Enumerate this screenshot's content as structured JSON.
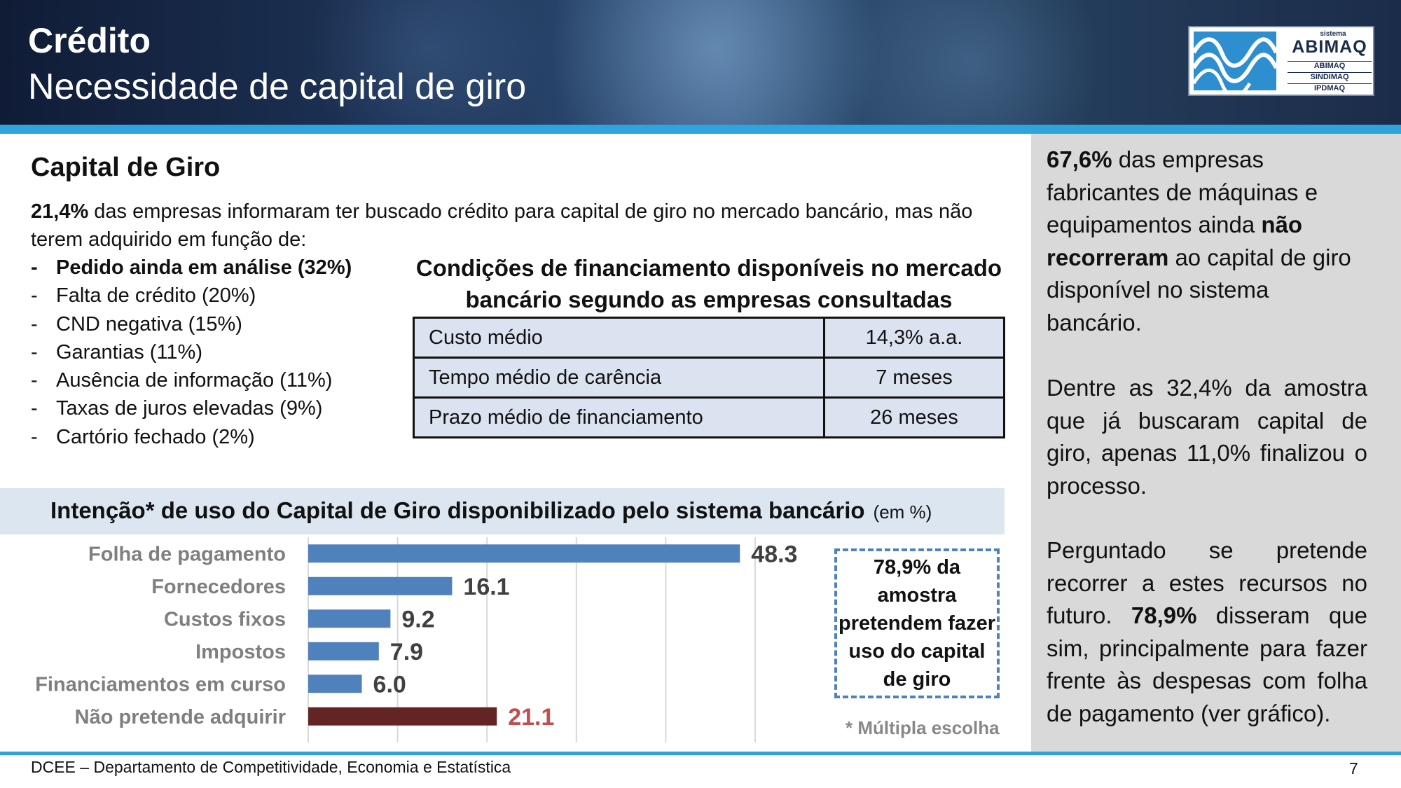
{
  "header": {
    "title": "Crédito",
    "subtitle": "Necessidade de capital de giro"
  },
  "logo": {
    "small_top": "sistema",
    "name": "ABIMAQ",
    "entities": [
      "ABIMAQ",
      "SINDIMAQ",
      "IPDMAQ"
    ]
  },
  "section": {
    "title": "Capital de Giro",
    "intro_bold": "21,4%",
    "intro_text": " das empresas informaram ter buscado crédito para capital de giro no mercado bancário, mas não terem adquirido em função de:",
    "reasons": [
      {
        "dash": "-",
        "text": "Pedido ainda em análise (32%)",
        "bold": true
      },
      {
        "dash": "-",
        "text": "Falta de crédito (20%)",
        "bold": false
      },
      {
        "dash": "-",
        "text": "CND negativa (15%)",
        "bold": false
      },
      {
        "dash": "-",
        "text": "Garantias (11%)",
        "bold": false
      },
      {
        "dash": "-",
        "text": "Ausência de informação (11%)",
        "bold": false
      },
      {
        "dash": "-",
        "text": "Taxas de juros elevadas (9%)",
        "bold": false
      },
      {
        "dash": "-",
        "text": "Cartório fechado (2%)",
        "bold": false
      }
    ]
  },
  "financing_table": {
    "title": "Condições de financiamento disponíveis no mercado bancário segundo as empresas consultadas",
    "rows": [
      {
        "label": "Custo médio",
        "value": "14,3% a.a."
      },
      {
        "label": "Tempo médio de carência",
        "value": "7 meses"
      },
      {
        "label": "Prazo médio de financiamento",
        "value": "26 meses"
      }
    ]
  },
  "chart_data": {
    "type": "bar",
    "orientation": "horizontal",
    "title": "Intenção* de uso do Capital de Giro disponibilizado pelo sistema bancário",
    "units": "(em %)",
    "categories": [
      "Folha de pagamento",
      "Fornecedores",
      "Custos fixos",
      "Impostos",
      "Financiamentos em curso",
      "Não pretende adquirir"
    ],
    "values": [
      48.3,
      16.1,
      9.2,
      7.9,
      6.0,
      21.1
    ],
    "value_labels": [
      "48.3",
      "16.1",
      "9.2",
      "7.9",
      "6.0",
      "21.1"
    ],
    "colors": [
      "#4f81bd",
      "#4f81bd",
      "#4f81bd",
      "#4f81bd",
      "#4f81bd",
      "#632523"
    ],
    "label_colors": [
      "#404040",
      "#404040",
      "#404040",
      "#404040",
      "#404040",
      "#c0504d"
    ],
    "xlim": [
      0,
      50
    ],
    "grid": true,
    "note": "* Múltipla escolha"
  },
  "callout": {
    "text": "78,9% da amostra pretendem fazer uso do capital de giro"
  },
  "side_panel": {
    "p1": [
      {
        "text": "67,6%",
        "bold": true
      },
      {
        "text": " das empresas fabricantes de máquinas e equipamentos ainda ",
        "bold": false
      },
      {
        "text": "não recorreram",
        "bold": true
      },
      {
        "text": " ao capital de giro disponível no sistema bancário.",
        "bold": false
      }
    ],
    "p2": [
      {
        "text": "Dentre as 32,4% da amostra que já buscaram capital de giro, apenas 11,0% finalizou o processo.",
        "bold": false
      }
    ],
    "p3": [
      {
        "text": "Perguntado se pretende recorrer a estes recursos no futuro. ",
        "bold": false
      },
      {
        "text": "78,9%",
        "bold": true
      },
      {
        "text": " disseram que sim, principalmente para fazer frente às despesas com folha de pagamento (ver gráfico).",
        "bold": false
      }
    ]
  },
  "footer": {
    "text": "DCEE – Departamento de Competitividade, Economia e Estatística",
    "page": "7"
  },
  "colors": {
    "accent_blue": "#2ea3dc",
    "bar_blue": "#4f81bd",
    "bar_dark_red": "#632523",
    "label_red": "#c0504d",
    "side_panel_bg": "#d9d9d9",
    "table_bg": "#dbe3f0"
  }
}
